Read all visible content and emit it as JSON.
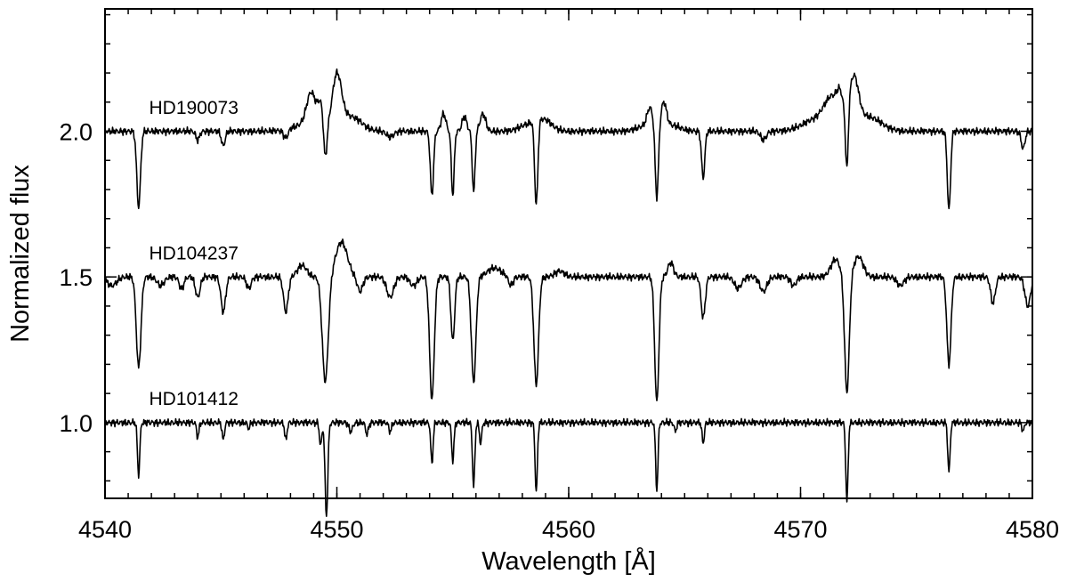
{
  "chart_data": {
    "type": "line",
    "title": "",
    "xlabel": "Wavelength [Å]",
    "ylabel": "Normalized flux",
    "xlim": [
      4540,
      4580
    ],
    "ylim": [
      0.74,
      2.42
    ],
    "x_ticks": [
      4540,
      4550,
      4560,
      4570,
      4580
    ],
    "x_tick_labels": [
      "4540",
      "4550",
      "4560",
      "4570",
      "4580"
    ],
    "x_minor_step": 1,
    "y_ticks": [
      1.0,
      1.5,
      2.0
    ],
    "y_tick_labels": [
      "1.0",
      "1.5",
      "2.0"
    ],
    "y_minor_step": 0.1,
    "grid": false,
    "legend": "none",
    "series": [
      {
        "name": "HD190073",
        "label_x": 4541.9,
        "label_y": 2.06,
        "continuum": 2.0,
        "features": [
          [
            4541.45,
            -0.26,
            0.08
          ],
          [
            4544.0,
            -0.03,
            0.08
          ],
          [
            4545.1,
            -0.05,
            0.08
          ],
          [
            4547.8,
            -0.03,
            0.1
          ],
          [
            4548.9,
            0.12,
            0.2
          ],
          [
            4549.3,
            0.08,
            0.12
          ],
          [
            4549.5,
            -0.12,
            0.07
          ],
          [
            4550.0,
            0.18,
            0.2
          ],
          [
            4550.6,
            0.05,
            0.45
          ],
          [
            4548.5,
            0.02,
            0.5
          ],
          [
            4552.3,
            -0.02,
            0.15
          ],
          [
            4554.1,
            -0.22,
            0.07
          ],
          [
            4554.6,
            0.06,
            0.1
          ],
          [
            4555.0,
            -0.22,
            0.06
          ],
          [
            4555.5,
            0.05,
            0.1
          ],
          [
            4555.9,
            -0.21,
            0.06
          ],
          [
            4556.3,
            0.06,
            0.12
          ],
          [
            4558.6,
            -0.29,
            0.07
          ],
          [
            4558.9,
            0.04,
            0.35
          ],
          [
            4558.2,
            0.02,
            0.35
          ],
          [
            4563.4,
            0.02,
            0.4
          ],
          [
            4563.5,
            0.06,
            0.12
          ],
          [
            4563.8,
            -0.25,
            0.07
          ],
          [
            4564.1,
            0.08,
            0.12
          ],
          [
            4564.4,
            0.02,
            0.4
          ],
          [
            4565.8,
            -0.16,
            0.07
          ],
          [
            4568.4,
            -0.03,
            0.12
          ],
          [
            4571.4,
            0.1,
            0.35
          ],
          [
            4571.7,
            0.06,
            0.12
          ],
          [
            4572.0,
            -0.22,
            0.06
          ],
          [
            4572.3,
            0.16,
            0.2
          ],
          [
            4572.9,
            0.05,
            0.55
          ],
          [
            4570.7,
            0.04,
            0.6
          ],
          [
            4576.4,
            -0.27,
            0.07
          ],
          [
            4579.6,
            -0.06,
            0.08
          ]
        ]
      },
      {
        "name": "HD104237",
        "label_x": 4541.9,
        "label_y": 1.56,
        "continuum": 1.5,
        "features": [
          [
            4540.3,
            -0.03,
            0.2
          ],
          [
            4541.45,
            -0.31,
            0.1
          ],
          [
            4542.4,
            -0.03,
            0.15
          ],
          [
            4543.3,
            -0.04,
            0.1
          ],
          [
            4544.0,
            -0.07,
            0.1
          ],
          [
            4545.1,
            -0.12,
            0.1
          ],
          [
            4546.2,
            -0.04,
            0.1
          ],
          [
            4547.8,
            -0.12,
            0.1
          ],
          [
            4548.5,
            0.04,
            0.2
          ],
          [
            4549.5,
            -0.36,
            0.13
          ],
          [
            4550.2,
            0.12,
            0.25
          ],
          [
            4551.0,
            -0.05,
            0.12
          ],
          [
            4552.3,
            -0.07,
            0.15
          ],
          [
            4553.3,
            -0.03,
            0.15
          ],
          [
            4554.1,
            -0.42,
            0.1
          ],
          [
            4555.0,
            -0.22,
            0.08
          ],
          [
            4555.9,
            -0.36,
            0.1
          ],
          [
            4556.8,
            0.03,
            0.3
          ],
          [
            4557.5,
            -0.03,
            0.1
          ],
          [
            4558.6,
            -0.37,
            0.1
          ],
          [
            4559.6,
            0.02,
            0.2
          ],
          [
            4563.8,
            -0.43,
            0.09
          ],
          [
            4564.4,
            0.05,
            0.12
          ],
          [
            4565.8,
            -0.14,
            0.09
          ],
          [
            4567.3,
            -0.04,
            0.15
          ],
          [
            4568.4,
            -0.05,
            0.15
          ],
          [
            4569.7,
            -0.03,
            0.12
          ],
          [
            4571.5,
            0.06,
            0.2
          ],
          [
            4572.0,
            -0.4,
            0.1
          ],
          [
            4572.5,
            0.07,
            0.2
          ],
          [
            4574.3,
            -0.03,
            0.15
          ],
          [
            4576.4,
            -0.3,
            0.09
          ],
          [
            4578.3,
            -0.09,
            0.1
          ],
          [
            4579.8,
            -0.1,
            0.12
          ]
        ]
      },
      {
        "name": "HD101412",
        "label_x": 4541.9,
        "label_y": 1.06,
        "continuum": 1.0,
        "features": [
          [
            4541.45,
            -0.18,
            0.05
          ],
          [
            4544.0,
            -0.05,
            0.05
          ],
          [
            4545.1,
            -0.06,
            0.05
          ],
          [
            4546.2,
            -0.02,
            0.05
          ],
          [
            4547.8,
            -0.06,
            0.05
          ],
          [
            4549.3,
            -0.08,
            0.05
          ],
          [
            4549.55,
            -0.32,
            0.06
          ],
          [
            4550.6,
            -0.03,
            0.08
          ],
          [
            4551.3,
            -0.04,
            0.06
          ],
          [
            4552.3,
            -0.03,
            0.06
          ],
          [
            4554.1,
            -0.14,
            0.05
          ],
          [
            4555.0,
            -0.13,
            0.05
          ],
          [
            4555.9,
            -0.22,
            0.05
          ],
          [
            4556.2,
            -0.07,
            0.05
          ],
          [
            4558.6,
            -0.24,
            0.05
          ],
          [
            4563.8,
            -0.23,
            0.05
          ],
          [
            4564.6,
            -0.03,
            0.05
          ],
          [
            4565.8,
            -0.07,
            0.05
          ],
          [
            4572.0,
            -0.27,
            0.05
          ],
          [
            4576.4,
            -0.17,
            0.05
          ],
          [
            4579.6,
            -0.03,
            0.05
          ]
        ]
      }
    ]
  }
}
